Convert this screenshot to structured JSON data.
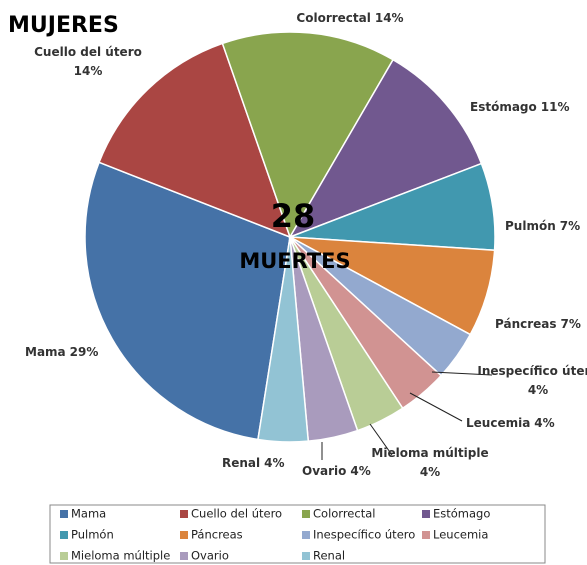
{
  "chart_data": {
    "type": "pie",
    "title": "MUJERES",
    "center_value": 28,
    "center_label": "MUERTES",
    "categories": [
      "Mama",
      "Cuello del útero",
      "Colorrectal",
      "Estómago",
      "Pulmón",
      "Páncreas",
      "Inespecífico útero",
      "Leucemia",
      "Mieloma múltiple",
      "Ovario",
      "Renal"
    ],
    "values": [
      29,
      14,
      14,
      11,
      7,
      7,
      4,
      4,
      4,
      4,
      4
    ],
    "value_labels": [
      "29%",
      "14%",
      "14%",
      "11%",
      "7%",
      "7%",
      "4%",
      "4%",
      "4%",
      "4%",
      "4%"
    ],
    "colors": [
      "#4572a7",
      "#aa4643",
      "#89a54e",
      "#71588f",
      "#4198af",
      "#db843d",
      "#93a9cf",
      "#d19392",
      "#b9cd96",
      "#a99bbd",
      "#92c3d4"
    ],
    "legend": "bottom"
  }
}
